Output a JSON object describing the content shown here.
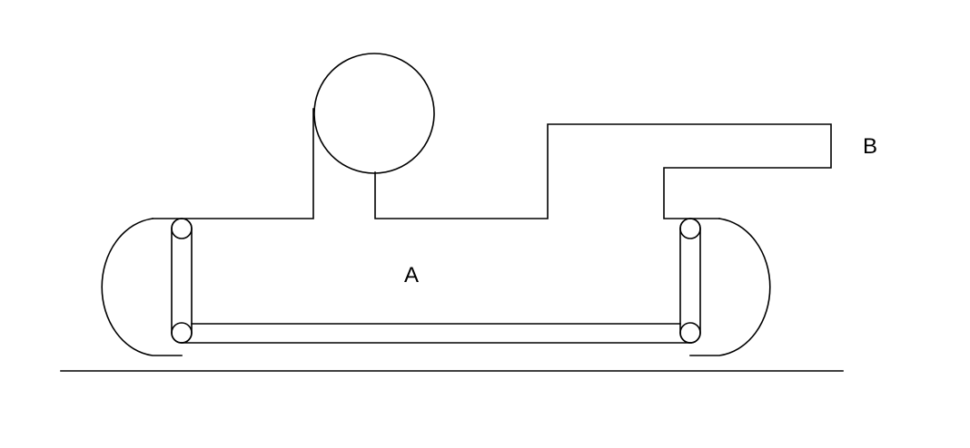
{
  "diagram": {
    "labels": {
      "a": "A",
      "b": "B"
    },
    "colors": {
      "background": "#ffffff",
      "line": "#000000",
      "text": "#000000"
    }
  }
}
